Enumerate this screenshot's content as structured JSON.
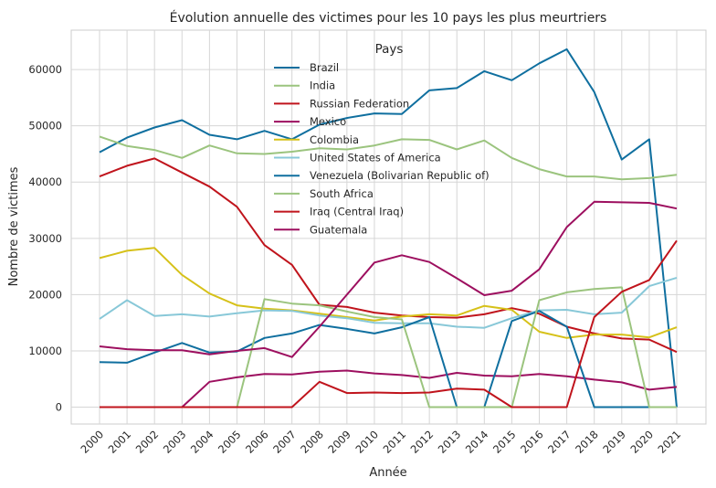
{
  "chart_data": {
    "type": "line",
    "title": "Évolution annuelle des victimes pour les 10 pays les plus meurtriers",
    "xlabel": "Année",
    "ylabel": "Nombre de victimes",
    "x": [
      "2000",
      "2001",
      "2002",
      "2003",
      "2004",
      "2005",
      "2006",
      "2007",
      "2008",
      "2009",
      "2010",
      "2011",
      "2012",
      "2013",
      "2014",
      "2015",
      "2016",
      "2017",
      "2018",
      "2019",
      "2020",
      "2021"
    ],
    "ylim": [
      -3000,
      67000
    ],
    "yticks": [
      {
        "value": 0,
        "label": "0"
      },
      {
        "value": 10000,
        "label": "10000"
      },
      {
        "value": 20000,
        "label": "20000"
      },
      {
        "value": 30000,
        "label": "30000"
      },
      {
        "value": 40000,
        "label": "40000"
      },
      {
        "value": 50000,
        "label": "50000"
      },
      {
        "value": 60000,
        "label": "60000"
      }
    ],
    "grid": true,
    "legend": {
      "title": "Pays",
      "placement": "top-center"
    },
    "series": [
      {
        "name": "Brazil",
        "color": "#0f6f9f",
        "values": [
          45300,
          47900,
          49700,
          51000,
          48400,
          47600,
          49100,
          47600,
          50200,
          51400,
          52200,
          52100,
          56300,
          56700,
          59700,
          58100,
          61100,
          63600,
          56000,
          44000,
          47600,
          0
        ]
      },
      {
        "name": "India",
        "color": "#9bc47e",
        "values": [
          48100,
          46400,
          45700,
          44300,
          46500,
          45100,
          45000,
          45400,
          46000,
          45800,
          46500,
          47600,
          47500,
          45800,
          47400,
          44300,
          42300,
          41000,
          41000,
          40500,
          40700,
          41300
        ]
      },
      {
        "name": "Russian Federation",
        "color": "#c0141c",
        "values": [
          41000,
          42900,
          44200,
          41700,
          39200,
          35600,
          28800,
          25300,
          18200,
          17800,
          16800,
          16300,
          16000,
          15900,
          16500,
          17600,
          16600,
          14300,
          13100,
          12200,
          12000,
          9800
        ]
      },
      {
        "name": "Mexico",
        "color": "#9d0f5f",
        "values": [
          0,
          0,
          0,
          0,
          4500,
          5300,
          5900,
          5800,
          6300,
          6500,
          6000,
          5700,
          5200,
          6100,
          5600,
          5500,
          5900,
          5500,
          4900,
          4400,
          3100,
          3600
        ]
      },
      {
        "name": "Colombia",
        "color": "#d6c119",
        "values": [
          26500,
          27800,
          28300,
          23500,
          20200,
          18100,
          17500,
          17200,
          16600,
          16000,
          15400,
          16100,
          16500,
          16300,
          18000,
          17300,
          13400,
          12300,
          12900,
          12900,
          12400,
          14200
        ]
      },
      {
        "name": "United States of America",
        "color": "#88c8d8",
        "values": [
          15700,
          19000,
          16200,
          16500,
          16100,
          16700,
          17200,
          17100,
          16300,
          15800,
          15000,
          14900,
          14900,
          14300,
          14100,
          15800,
          17200,
          17300,
          16500,
          16800,
          21500,
          23000
        ]
      },
      {
        "name": "Venezuela (Bolivarian Republic of)",
        "color": "#0f6f9f",
        "values": [
          8000,
          7900,
          9700,
          11400,
          9700,
          9900,
          12300,
          13100,
          14600,
          13900,
          13100,
          14200,
          16000,
          0,
          0,
          15300,
          17100,
          14300,
          0,
          0,
          0,
          0
        ]
      },
      {
        "name": "South Africa",
        "color": "#9bc47e",
        "values": [
          0,
          0,
          0,
          0,
          0,
          0,
          19200,
          18400,
          18100,
          17000,
          16000,
          15600,
          0,
          0,
          0,
          0,
          19000,
          20400,
          21000,
          21300,
          0,
          0
        ]
      },
      {
        "name": "Iraq (Central Iraq)",
        "color": "#c0141c",
        "values": [
          0,
          0,
          0,
          0,
          0,
          0,
          0,
          0,
          4500,
          2500,
          2600,
          2500,
          2600,
          3300,
          3100,
          0,
          0,
          0,
          16000,
          20500,
          22600,
          29600
        ]
      },
      {
        "name": "Guatemala",
        "color": "#9d0f5f",
        "values": [
          10800,
          10300,
          10100,
          10100,
          9400,
          10000,
          10500,
          8900,
          14300,
          20000,
          25700,
          27000,
          25800,
          22900,
          19900,
          20700,
          24500,
          32000,
          36500,
          36400,
          36300,
          35300
        ]
      }
    ]
  }
}
